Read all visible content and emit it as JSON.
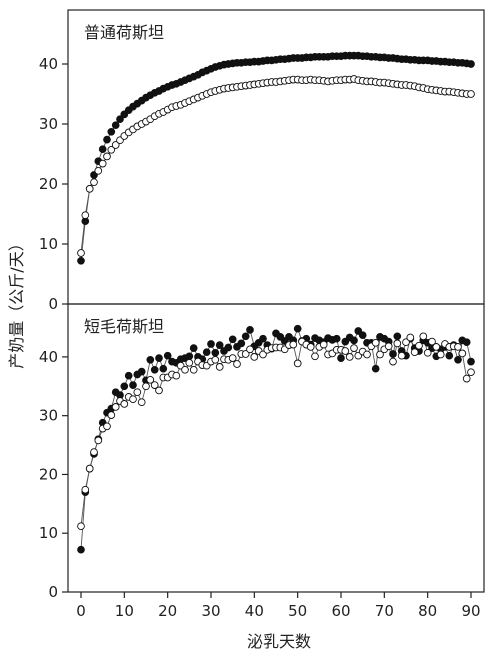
{
  "chart_data": [
    {
      "type": "scatter",
      "title": "普通荷斯坦",
      "xlabel": "",
      "ylabel": "产奶量（公斤/天）",
      "xlim": [
        -3,
        93
      ],
      "ylim": [
        0,
        49
      ],
      "yticks": [
        0,
        10,
        20,
        30,
        40
      ],
      "xticks": [],
      "grid": false,
      "legend": "none",
      "series": [
        {
          "marker": "filled-circle",
          "color": "#111111",
          "x": [
            0,
            1,
            2,
            3,
            4,
            5,
            6,
            7,
            8,
            9,
            10,
            11,
            12,
            13,
            14,
            15,
            16,
            17,
            18,
            19,
            20,
            21,
            22,
            23,
            24,
            25,
            26,
            27,
            28,
            29,
            30,
            31,
            32,
            33,
            34,
            35,
            36,
            37,
            38,
            39,
            40,
            41,
            42,
            43,
            44,
            45,
            46,
            47,
            48,
            49,
            50,
            51,
            52,
            53,
            54,
            55,
            56,
            57,
            58,
            59,
            60,
            61,
            62,
            63,
            64,
            65,
            66,
            67,
            68,
            69,
            70,
            71,
            72,
            73,
            74,
            75,
            76,
            77,
            78,
            79,
            80,
            81,
            82,
            83,
            84,
            85,
            86,
            87,
            88,
            89,
            90
          ],
          "values": [
            7.2,
            13.8,
            19.2,
            21.5,
            23.8,
            25.8,
            27.4,
            28.7,
            29.8,
            30.8,
            31.6,
            32.3,
            32.9,
            33.4,
            33.9,
            34.4,
            34.8,
            35.2,
            35.5,
            35.9,
            36.2,
            36.5,
            36.7,
            37.0,
            37.3,
            37.6,
            37.9,
            38.2,
            38.6,
            38.9,
            39.2,
            39.5,
            39.7,
            39.9,
            40.0,
            40.1,
            40.2,
            40.2,
            40.3,
            40.3,
            40.4,
            40.4,
            40.5,
            40.6,
            40.6,
            40.7,
            40.8,
            40.8,
            40.9,
            41.0,
            41.0,
            41.0,
            41.1,
            41.1,
            41.2,
            41.2,
            41.2,
            41.2,
            41.3,
            41.3,
            41.3,
            41.4,
            41.4,
            41.4,
            41.4,
            41.3,
            41.3,
            41.2,
            41.2,
            41.1,
            41.1,
            41.0,
            41.0,
            40.9,
            40.8,
            40.8,
            40.7,
            40.7,
            40.6,
            40.6,
            40.6,
            40.5,
            40.5,
            40.4,
            40.4,
            40.3,
            40.3,
            40.2,
            40.2,
            40.1,
            40.0
          ]
        },
        {
          "marker": "open-circle",
          "color": "#111111",
          "x": [
            0,
            1,
            2,
            3,
            4,
            5,
            6,
            7,
            8,
            9,
            10,
            11,
            12,
            13,
            14,
            15,
            16,
            17,
            18,
            19,
            20,
            21,
            22,
            23,
            24,
            25,
            26,
            27,
            28,
            29,
            30,
            31,
            32,
            33,
            34,
            35,
            36,
            37,
            38,
            39,
            40,
            41,
            42,
            43,
            44,
            45,
            46,
            47,
            48,
            49,
            50,
            51,
            52,
            53,
            54,
            55,
            56,
            57,
            58,
            59,
            60,
            61,
            62,
            63,
            64,
            65,
            66,
            67,
            68,
            69,
            70,
            71,
            72,
            73,
            74,
            75,
            76,
            77,
            78,
            79,
            80,
            81,
            82,
            83,
            84,
            85,
            86,
            87,
            88,
            89,
            90
          ],
          "values": [
            8.5,
            14.8,
            19.2,
            20.3,
            22.2,
            23.4,
            24.6,
            25.7,
            26.5,
            27.3,
            28.0,
            28.6,
            29.1,
            29.6,
            30.0,
            30.4,
            30.8,
            31.3,
            31.7,
            32.0,
            32.4,
            32.8,
            33.0,
            33.2,
            33.5,
            33.8,
            34.1,
            34.4,
            34.7,
            35.0,
            35.3,
            35.5,
            35.7,
            35.9,
            36.0,
            36.1,
            36.2,
            36.3,
            36.4,
            36.5,
            36.6,
            36.7,
            36.8,
            36.9,
            37.0,
            37.0,
            37.1,
            37.2,
            37.3,
            37.4,
            37.4,
            37.3,
            37.3,
            37.4,
            37.3,
            37.3,
            37.2,
            37.1,
            37.2,
            37.3,
            37.3,
            37.4,
            37.4,
            37.5,
            37.3,
            37.2,
            37.1,
            37.1,
            37.0,
            36.9,
            36.9,
            36.8,
            36.7,
            36.6,
            36.5,
            36.5,
            36.4,
            36.3,
            36.1,
            36.0,
            35.8,
            35.7,
            35.6,
            35.5,
            35.4,
            35.4,
            35.3,
            35.2,
            35.1,
            35.0,
            35.0
          ]
        }
      ]
    },
    {
      "type": "scatter",
      "title": "短毛荷斯坦",
      "xlabel": "泌乳天数",
      "ylabel": "",
      "xlim": [
        -3,
        93
      ],
      "ylim": [
        0,
        49
      ],
      "yticks": [
        0,
        10,
        20,
        30,
        40
      ],
      "xticks": [
        0,
        10,
        20,
        30,
        40,
        50,
        60,
        70,
        80,
        90
      ],
      "grid": false,
      "legend": "none",
      "series": [
        {
          "marker": "filled-circle",
          "color": "#111111",
          "x": [
            0,
            1,
            2,
            3,
            4,
            5,
            6,
            7,
            8,
            9,
            10,
            11,
            12,
            13,
            14,
            15,
            16,
            17,
            18,
            19,
            20,
            21,
            22,
            23,
            24,
            25,
            26,
            27,
            28,
            29,
            30,
            31,
            32,
            33,
            34,
            35,
            36,
            37,
            38,
            39,
            40,
            41,
            42,
            43,
            44,
            45,
            46,
            47,
            48,
            49,
            50,
            51,
            52,
            53,
            54,
            55,
            56,
            57,
            58,
            59,
            60,
            61,
            62,
            63,
            64,
            65,
            66,
            67,
            68,
            69,
            70,
            71,
            72,
            73,
            74,
            75,
            76,
            77,
            78,
            79,
            80,
            81,
            82,
            83,
            84,
            85,
            86,
            87,
            88,
            89,
            90
          ],
          "values": [
            7.2,
            17.0,
            21.0,
            23.5,
            26.0,
            28.8,
            30.5,
            31.2,
            34.0,
            33.5,
            35.0,
            36.8,
            35.2,
            37.0,
            37.5,
            36.0,
            39.5,
            37.8,
            39.8,
            38.0,
            40.2,
            39.2,
            39.0,
            39.6,
            39.8,
            40.1,
            41.5,
            40.0,
            39.6,
            40.8,
            42.2,
            40.7,
            42.0,
            41.0,
            41.6,
            43.0,
            41.7,
            42.3,
            43.5,
            44.6,
            41.8,
            42.4,
            43.1,
            42.0,
            41.4,
            44.0,
            43.4,
            42.7,
            43.4,
            42.8,
            44.8,
            42.7,
            43.1,
            42.1,
            43.2,
            42.8,
            42.5,
            43.2,
            42.9,
            43.1,
            39.8,
            42.6,
            43.3,
            42.8,
            44.4,
            43.7,
            42.4,
            42.4,
            38.0,
            43.4,
            43.1,
            42.6,
            40.5,
            43.5,
            41.0,
            40.2,
            43.1,
            41.5,
            41.0,
            42.8,
            42.4,
            41.5,
            40.1,
            41.3,
            41.7,
            40.2,
            42.0,
            39.5,
            42.8,
            42.5,
            39.2
          ]
        },
        {
          "marker": "open-circle",
          "color": "#111111",
          "x": [
            0,
            1,
            2,
            3,
            4,
            5,
            6,
            7,
            8,
            9,
            10,
            11,
            12,
            13,
            14,
            15,
            16,
            17,
            18,
            19,
            20,
            21,
            22,
            23,
            24,
            25,
            26,
            27,
            28,
            29,
            30,
            31,
            32,
            33,
            34,
            35,
            36,
            37,
            38,
            39,
            40,
            41,
            42,
            43,
            44,
            45,
            46,
            47,
            48,
            49,
            50,
            51,
            52,
            53,
            54,
            55,
            56,
            57,
            58,
            59,
            60,
            61,
            62,
            63,
            64,
            65,
            66,
            67,
            68,
            69,
            70,
            71,
            72,
            73,
            74,
            75,
            76,
            77,
            78,
            79,
            80,
            81,
            82,
            83,
            84,
            85,
            86,
            87,
            88,
            89,
            90
          ],
          "values": [
            11.2,
            17.4,
            21.0,
            23.8,
            25.8,
            27.8,
            28.2,
            30.1,
            31.5,
            32.5,
            32.0,
            33.2,
            32.8,
            34.0,
            32.3,
            35.0,
            36.1,
            35.2,
            34.3,
            36.5,
            36.5,
            37.0,
            36.8,
            38.5,
            37.8,
            39.0,
            37.8,
            39.2,
            38.6,
            38.5,
            39.2,
            39.5,
            38.3,
            39.6,
            39.5,
            39.8,
            38.8,
            40.5,
            40.5,
            41.3,
            40.0,
            41.0,
            40.4,
            41.2,
            41.5,
            41.6,
            41.6,
            41.3,
            42.0,
            42.1,
            38.9,
            42.6,
            42.1,
            41.7,
            40.1,
            41.7,
            42.1,
            40.4,
            40.6,
            41.2,
            41.2,
            41.0,
            40.0,
            41.5,
            40.2,
            40.9,
            40.4,
            41.8,
            42.4,
            40.4,
            41.3,
            41.8,
            39.2,
            42.3,
            40.2,
            42.5,
            43.3,
            40.8,
            41.9,
            43.5,
            40.7,
            42.6,
            41.7,
            40.4,
            42.2,
            41.7,
            41.8,
            41.7,
            40.6,
            36.3,
            37.4
          ]
        }
      ]
    }
  ]
}
